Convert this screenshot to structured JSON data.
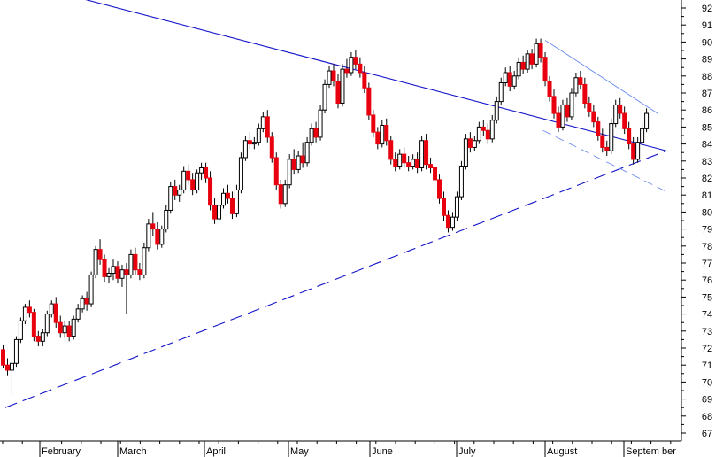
{
  "chart_data": {
    "type": "candlestick",
    "title": "",
    "xlabel": "",
    "ylabel": "",
    "ylim": [
      66.5,
      92.5
    ],
    "y_ticks": [
      67,
      68,
      69,
      70,
      71,
      72,
      73,
      74,
      75,
      76,
      77,
      78,
      79,
      80,
      81,
      82,
      83,
      84,
      85,
      86,
      87,
      88,
      89,
      90,
      91,
      92
    ],
    "month_labels": [
      "February",
      "March",
      "April",
      "May",
      "June",
      "July",
      "August",
      "Septem ber"
    ],
    "grid": false,
    "colors": {
      "up": "#ffffff",
      "down": "#e8000e",
      "wick": "#000000",
      "trendline": "#1414c8",
      "channel": "#6e8cf0",
      "axis": "#000000"
    },
    "candles": [
      [
        71.9,
        72.2,
        70.8,
        71.0
      ],
      [
        71.0,
        71.4,
        70.4,
        70.7
      ],
      [
        70.7,
        71.4,
        69.2,
        71.1
      ],
      [
        71.1,
        72.7,
        70.9,
        72.5
      ],
      [
        72.5,
        73.8,
        72.3,
        73.6
      ],
      [
        73.6,
        74.6,
        73.4,
        74.4
      ],
      [
        74.4,
        74.8,
        73.8,
        74.1
      ],
      [
        74.1,
        74.3,
        72.4,
        72.7
      ],
      [
        72.7,
        73.0,
        72.1,
        72.4
      ],
      [
        72.4,
        73.1,
        72.1,
        72.9
      ],
      [
        72.9,
        74.2,
        72.7,
        74.0
      ],
      [
        74.0,
        74.8,
        73.8,
        74.6
      ],
      [
        74.6,
        75.0,
        73.2,
        73.5
      ],
      [
        73.5,
        73.9,
        72.6,
        72.9
      ],
      [
        72.9,
        73.6,
        72.6,
        73.3
      ],
      [
        73.3,
        73.6,
        72.4,
        72.7
      ],
      [
        72.7,
        73.9,
        72.5,
        73.7
      ],
      [
        73.7,
        74.6,
        73.5,
        74.3
      ],
      [
        74.3,
        75.1,
        74.1,
        74.9
      ],
      [
        74.9,
        75.3,
        74.2,
        74.6
      ],
      [
        74.6,
        76.5,
        74.4,
        76.3
      ],
      [
        76.3,
        78.0,
        76.1,
        77.8
      ],
      [
        77.8,
        78.4,
        76.9,
        77.2
      ],
      [
        77.2,
        77.5,
        75.9,
        76.2
      ],
      [
        76.2,
        76.7,
        75.8,
        76.4
      ],
      [
        76.4,
        77.2,
        76.0,
        76.8
      ],
      [
        76.8,
        77.1,
        75.8,
        76.1
      ],
      [
        76.1,
        76.9,
        75.6,
        76.6
      ],
      [
        76.6,
        77.0,
        74.0,
        76.3
      ],
      [
        76.3,
        77.8,
        76.1,
        77.5
      ],
      [
        77.5,
        77.9,
        76.3,
        76.6
      ],
      [
        76.6,
        77.0,
        76.0,
        76.3
      ],
      [
        76.3,
        78.2,
        76.1,
        77.9
      ],
      [
        77.9,
        79.6,
        77.7,
        79.3
      ],
      [
        79.3,
        80.0,
        78.6,
        79.0
      ],
      [
        79.0,
        79.4,
        77.8,
        78.1
      ],
      [
        78.1,
        79.2,
        77.9,
        79.0
      ],
      [
        79.0,
        80.4,
        78.8,
        80.1
      ],
      [
        80.1,
        81.8,
        79.9,
        81.5
      ],
      [
        81.5,
        81.9,
        80.7,
        81.0
      ],
      [
        81.0,
        81.6,
        80.6,
        81.3
      ],
      [
        81.3,
        82.7,
        81.1,
        82.4
      ],
      [
        82.4,
        82.8,
        81.6,
        81.9
      ],
      [
        81.9,
        82.3,
        81.0,
        81.3
      ],
      [
        81.3,
        82.5,
        81.1,
        82.3
      ],
      [
        82.3,
        82.9,
        81.9,
        82.6
      ],
      [
        82.6,
        82.9,
        81.7,
        82.0
      ],
      [
        82.0,
        82.4,
        80.1,
        80.4
      ],
      [
        80.4,
        80.8,
        79.3,
        79.6
      ],
      [
        79.6,
        80.7,
        79.4,
        80.4
      ],
      [
        80.4,
        81.4,
        80.2,
        81.1
      ],
      [
        81.1,
        81.6,
        80.5,
        80.8
      ],
      [
        80.8,
        81.2,
        79.6,
        79.9
      ],
      [
        79.9,
        81.6,
        79.7,
        81.3
      ],
      [
        81.3,
        83.5,
        81.1,
        83.2
      ],
      [
        83.2,
        84.5,
        83.0,
        84.2
      ],
      [
        84.2,
        84.7,
        83.7,
        84.0
      ],
      [
        84.0,
        84.4,
        83.7,
        84.1
      ],
      [
        84.1,
        85.2,
        83.9,
        84.9
      ],
      [
        84.9,
        85.9,
        84.7,
        85.6
      ],
      [
        85.6,
        86.0,
        84.1,
        84.4
      ],
      [
        84.4,
        84.7,
        82.9,
        83.2
      ],
      [
        83.2,
        83.5,
        81.3,
        81.6
      ],
      [
        81.6,
        81.9,
        80.2,
        80.5
      ],
      [
        80.5,
        81.9,
        80.3,
        81.6
      ],
      [
        81.6,
        83.4,
        81.4,
        83.1
      ],
      [
        83.1,
        83.7,
        82.2,
        82.5
      ],
      [
        82.5,
        83.6,
        82.3,
        83.3
      ],
      [
        83.3,
        84.1,
        82.6,
        82.9
      ],
      [
        82.9,
        84.4,
        82.7,
        84.1
      ],
      [
        84.1,
        85.2,
        83.9,
        84.9
      ],
      [
        84.9,
        85.3,
        84.1,
        84.4
      ],
      [
        84.4,
        86.3,
        84.2,
        86.0
      ],
      [
        86.0,
        87.8,
        85.8,
        87.5
      ],
      [
        87.5,
        88.6,
        87.3,
        88.3
      ],
      [
        88.3,
        88.7,
        87.4,
        87.7
      ],
      [
        87.7,
        88.1,
        86.1,
        86.4
      ],
      [
        86.4,
        88.7,
        86.2,
        88.4
      ],
      [
        88.4,
        89.0,
        87.9,
        88.2
      ],
      [
        88.2,
        89.4,
        88.0,
        89.1
      ],
      [
        89.1,
        89.5,
        88.4,
        88.7
      ],
      [
        88.7,
        89.1,
        87.9,
        88.2
      ],
      [
        88.2,
        88.6,
        87.0,
        87.3
      ],
      [
        87.3,
        87.6,
        85.4,
        85.7
      ],
      [
        85.7,
        86.0,
        84.4,
        84.7
      ],
      [
        84.7,
        85.0,
        83.7,
        84.0
      ],
      [
        84.0,
        85.4,
        83.8,
        85.1
      ],
      [
        85.1,
        85.5,
        83.9,
        84.2
      ],
      [
        84.2,
        84.5,
        82.8,
        83.1
      ],
      [
        83.1,
        83.5,
        82.4,
        82.7
      ],
      [
        82.7,
        83.7,
        82.5,
        83.4
      ],
      [
        83.4,
        83.8,
        82.6,
        82.9
      ],
      [
        82.9,
        83.3,
        82.4,
        82.7
      ],
      [
        82.7,
        83.4,
        82.5,
        83.1
      ],
      [
        83.1,
        83.5,
        82.3,
        82.6
      ],
      [
        82.6,
        84.5,
        82.4,
        84.2
      ],
      [
        84.2,
        84.6,
        82.5,
        82.8
      ],
      [
        82.8,
        83.2,
        82.3,
        82.6
      ],
      [
        82.6,
        82.9,
        81.6,
        81.9
      ],
      [
        81.9,
        82.2,
        80.5,
        80.8
      ],
      [
        80.8,
        81.2,
        79.5,
        79.8
      ],
      [
        79.8,
        80.1,
        78.8,
        79.1
      ],
      [
        79.1,
        80.0,
        78.9,
        79.7
      ],
      [
        79.7,
        81.2,
        79.5,
        80.9
      ],
      [
        80.9,
        83.0,
        80.7,
        82.7
      ],
      [
        82.7,
        84.6,
        82.5,
        84.3
      ],
      [
        84.3,
        84.7,
        83.5,
        83.8
      ],
      [
        83.8,
        84.5,
        83.6,
        84.2
      ],
      [
        84.2,
        85.3,
        84.0,
        85.0
      ],
      [
        85.0,
        85.4,
        84.5,
        84.8
      ],
      [
        84.8,
        85.2,
        84.0,
        84.3
      ],
      [
        84.3,
        85.7,
        84.1,
        85.4
      ],
      [
        85.4,
        86.8,
        85.2,
        86.5
      ],
      [
        86.5,
        87.9,
        86.3,
        87.6
      ],
      [
        87.6,
        88.5,
        87.4,
        88.2
      ],
      [
        88.2,
        88.6,
        87.1,
        87.4
      ],
      [
        87.4,
        88.3,
        87.2,
        88.0
      ],
      [
        88.0,
        89.1,
        87.8,
        88.8
      ],
      [
        88.8,
        89.2,
        88.1,
        88.4
      ],
      [
        88.4,
        89.5,
        88.2,
        89.3
      ],
      [
        89.3,
        89.6,
        88.4,
        88.7
      ],
      [
        88.7,
        90.2,
        88.5,
        89.9
      ],
      [
        89.9,
        90.2,
        88.8,
        89.1
      ],
      [
        89.1,
        89.4,
        87.4,
        87.7
      ],
      [
        87.7,
        88.0,
        86.5,
        86.8
      ],
      [
        86.8,
        87.2,
        85.5,
        85.8
      ],
      [
        85.8,
        86.2,
        84.7,
        85.0
      ],
      [
        85.0,
        86.6,
        84.8,
        86.3
      ],
      [
        86.3,
        86.7,
        85.3,
        85.6
      ],
      [
        85.6,
        87.3,
        85.4,
        87.0
      ],
      [
        87.0,
        88.2,
        86.8,
        87.9
      ],
      [
        87.9,
        88.3,
        87.2,
        87.5
      ],
      [
        87.5,
        87.9,
        86.1,
        86.4
      ],
      [
        86.4,
        86.8,
        85.6,
        85.9
      ],
      [
        85.9,
        86.3,
        85.0,
        85.3
      ],
      [
        85.3,
        85.6,
        84.2,
        84.5
      ],
      [
        84.5,
        84.9,
        83.5,
        83.8
      ],
      [
        83.8,
        84.2,
        83.3,
        83.6
      ],
      [
        83.6,
        85.5,
        83.4,
        85.2
      ],
      [
        85.2,
        86.6,
        85.0,
        86.3
      ],
      [
        86.3,
        86.7,
        85.5,
        85.8
      ],
      [
        85.8,
        86.2,
        84.6,
        84.9
      ],
      [
        84.9,
        85.3,
        83.7,
        84.0
      ],
      [
        84.0,
        84.4,
        82.8,
        83.1
      ],
      [
        83.1,
        84.4,
        82.9,
        84.1
      ],
      [
        84.1,
        85.2,
        83.9,
        84.9
      ],
      [
        84.9,
        86.1,
        84.7,
        85.8
      ]
    ],
    "trendlines": [
      {
        "style": "solid",
        "from": [
          -11,
          94.5
        ],
        "to": [
          150.5,
          83.6
        ]
      },
      {
        "style": "dashed",
        "from": [
          0.5,
          68.5
        ],
        "to": [
          150.5,
          83.6
        ]
      },
      {
        "style": "solid-thin",
        "from": [
          123.0,
          90.1
        ],
        "to": [
          148.5,
          85.8
        ]
      },
      {
        "style": "dashed-thin",
        "from": [
          122.5,
          84.8
        ],
        "to": [
          150.5,
          81.2
        ]
      }
    ]
  }
}
